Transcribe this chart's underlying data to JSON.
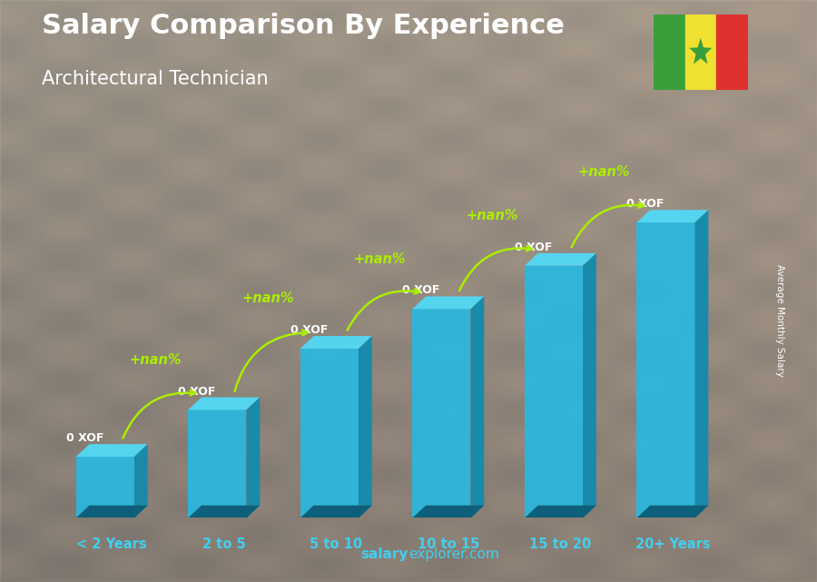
{
  "title_line1": "Salary Comparison By Experience",
  "title_line2": "Architectural Technician",
  "categories": [
    "< 2 Years",
    "2 to 5",
    "5 to 10",
    "10 to 15",
    "15 to 20",
    "20+ Years"
  ],
  "bar_heights": [
    0.17,
    0.3,
    0.47,
    0.58,
    0.7,
    0.82
  ],
  "bar_labels": [
    "0 XOF",
    "0 XOF",
    "0 XOF",
    "0 XOF",
    "0 XOF",
    "0 XOF"
  ],
  "pct_labels": [
    "+nan%",
    "+nan%",
    "+nan%",
    "+nan%",
    "+nan%"
  ],
  "bar_front_color": "#29b8e0",
  "bar_top_color": "#55d4f0",
  "bar_side_color": "#1a8aaa",
  "text_color_white": "#ffffff",
  "text_color_green": "#aaee00",
  "text_color_cyan": "#40d0f0",
  "ylabel": "Average Monthly Salary",
  "footer_bold": "salary",
  "footer_normal": "explorer.com",
  "flag_green": "#3a9e3a",
  "flag_yellow": "#f0e030",
  "flag_red": "#e03030",
  "flag_star": "#3a9e3a",
  "bg_top_color": "#8a8a7a",
  "bg_mid_color": "#7a7060",
  "bg_bot_color": "#605040",
  "ylim": [
    0,
    1.0
  ]
}
